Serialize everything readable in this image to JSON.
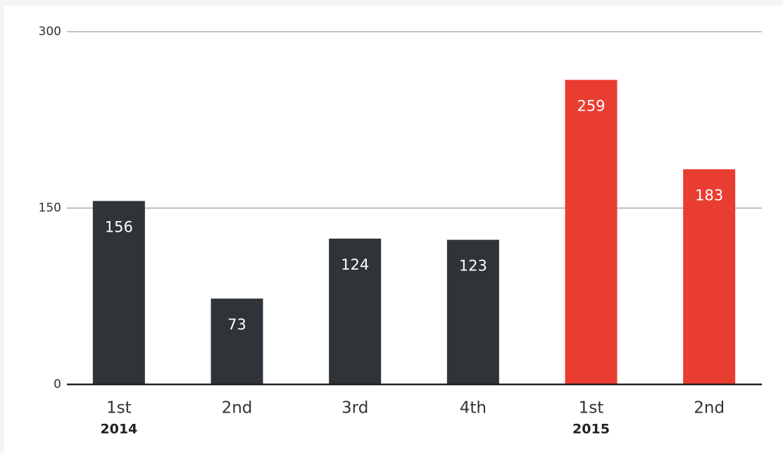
{
  "chart_data": {
    "type": "bar",
    "categories": [
      "1st",
      "2nd",
      "3rd",
      "4th",
      "1st",
      "2nd"
    ],
    "year_labels": [
      "2014",
      null,
      null,
      null,
      "2015",
      null
    ],
    "values": [
      156,
      73,
      124,
      123,
      259,
      183
    ],
    "colors": [
      "#2f3438",
      "#2f3438",
      "#2f3438",
      "#2f3438",
      "#ea3d32",
      "#ea3d32"
    ],
    "ylim": [
      0,
      300
    ],
    "yticks": [
      0,
      150,
      300
    ],
    "grid": true
  }
}
